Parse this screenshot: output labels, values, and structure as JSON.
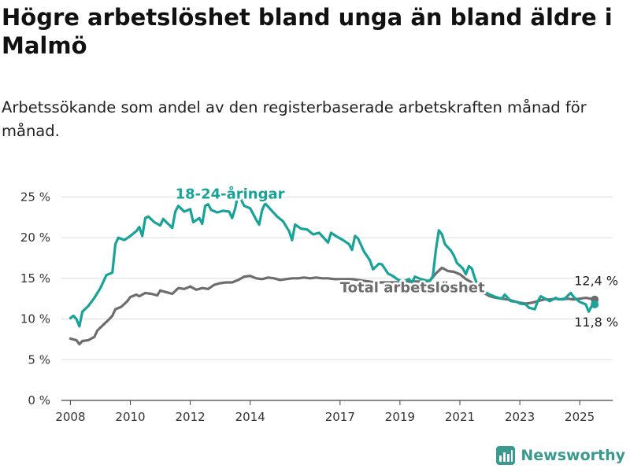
{
  "title": "Högre arbetslöshet bland unga än bland äldre i Malmö",
  "subtitle": "Arbetssökande som andel av den registerbaserade arbetskraften månad för månad.",
  "brand": {
    "name": "Newsworthy",
    "color": "#3a9a8f",
    "icon": "bar-chart-logo-icon"
  },
  "chart_data": {
    "type": "line",
    "ylim": [
      0,
      26
    ],
    "xlim": [
      2007.7,
      2026.1
    ],
    "y_ticks": [
      0,
      5,
      10,
      15,
      20,
      25
    ],
    "y_tick_labels": [
      "0 %",
      "5 %",
      "10 %",
      "15 %",
      "20 %",
      "25 %"
    ],
    "x_ticks": [
      2008,
      2010,
      2012,
      2014,
      2017,
      2019,
      2021,
      2023,
      2025
    ],
    "x_tick_labels": [
      "2008",
      "2010",
      "2012",
      "2014",
      "2017",
      "2019",
      "2021",
      "2023",
      "2025"
    ],
    "grid": true,
    "series": [
      {
        "name": "18-24-åringar",
        "color": "#18a398",
        "end_label": "11,8 %",
        "points": [
          [
            2008.0,
            10.1
          ],
          [
            2008.1,
            10.4
          ],
          [
            2008.2,
            10.0
          ],
          [
            2008.3,
            9.1
          ],
          [
            2008.4,
            10.9
          ],
          [
            2008.6,
            11.6
          ],
          [
            2008.8,
            12.6
          ],
          [
            2009.0,
            13.8
          ],
          [
            2009.2,
            15.4
          ],
          [
            2009.4,
            15.7
          ],
          [
            2009.5,
            19.2
          ],
          [
            2009.6,
            20.0
          ],
          [
            2009.8,
            19.7
          ],
          [
            2010.0,
            20.2
          ],
          [
            2010.2,
            20.8
          ],
          [
            2010.3,
            21.3
          ],
          [
            2010.4,
            20.2
          ],
          [
            2010.5,
            22.4
          ],
          [
            2010.6,
            22.6
          ],
          [
            2010.8,
            21.9
          ],
          [
            2011.0,
            21.5
          ],
          [
            2011.1,
            22.3
          ],
          [
            2011.2,
            21.9
          ],
          [
            2011.4,
            21.2
          ],
          [
            2011.5,
            23.2
          ],
          [
            2011.6,
            23.9
          ],
          [
            2011.8,
            23.2
          ],
          [
            2012.0,
            23.5
          ],
          [
            2012.1,
            21.9
          ],
          [
            2012.3,
            22.4
          ],
          [
            2012.4,
            21.7
          ],
          [
            2012.5,
            23.9
          ],
          [
            2012.6,
            24.1
          ],
          [
            2012.7,
            23.4
          ],
          [
            2012.9,
            23.1
          ],
          [
            2013.1,
            23.3
          ],
          [
            2013.3,
            23.2
          ],
          [
            2013.4,
            22.4
          ],
          [
            2013.5,
            23.6
          ],
          [
            2013.6,
            25.4
          ],
          [
            2013.8,
            23.9
          ],
          [
            2014.0,
            23.6
          ],
          [
            2014.2,
            22.2
          ],
          [
            2014.3,
            21.6
          ],
          [
            2014.4,
            23.4
          ],
          [
            2014.5,
            24.2
          ],
          [
            2014.7,
            23.4
          ],
          [
            2014.9,
            22.6
          ],
          [
            2015.1,
            22.0
          ],
          [
            2015.3,
            20.8
          ],
          [
            2015.4,
            19.7
          ],
          [
            2015.5,
            21.6
          ],
          [
            2015.7,
            21.1
          ],
          [
            2015.9,
            21.0
          ],
          [
            2016.1,
            20.4
          ],
          [
            2016.3,
            20.6
          ],
          [
            2016.5,
            19.8
          ],
          [
            2016.6,
            19.4
          ],
          [
            2016.7,
            20.6
          ],
          [
            2016.9,
            20.1
          ],
          [
            2017.1,
            19.7
          ],
          [
            2017.3,
            19.2
          ],
          [
            2017.4,
            18.5
          ],
          [
            2017.5,
            20.2
          ],
          [
            2017.6,
            19.9
          ],
          [
            2017.8,
            18.3
          ],
          [
            2018.0,
            17.2
          ],
          [
            2018.1,
            16.1
          ],
          [
            2018.3,
            16.8
          ],
          [
            2018.4,
            16.7
          ],
          [
            2018.6,
            15.6
          ],
          [
            2018.8,
            15.2
          ],
          [
            2018.9,
            14.9
          ],
          [
            2019.1,
            14.6
          ],
          [
            2019.3,
            14.9
          ],
          [
            2019.4,
            14.5
          ],
          [
            2019.5,
            15.2
          ],
          [
            2019.7,
            14.9
          ],
          [
            2019.9,
            14.7
          ],
          [
            2020.0,
            14.7
          ],
          [
            2020.1,
            15.3
          ],
          [
            2020.2,
            18.5
          ],
          [
            2020.3,
            20.9
          ],
          [
            2020.4,
            20.4
          ],
          [
            2020.5,
            19.2
          ],
          [
            2020.7,
            18.4
          ],
          [
            2020.8,
            17.8
          ],
          [
            2020.9,
            16.9
          ],
          [
            2021.1,
            16.2
          ],
          [
            2021.2,
            15.5
          ],
          [
            2021.3,
            16.5
          ],
          [
            2021.4,
            16.2
          ],
          [
            2021.5,
            15.0
          ],
          [
            2021.6,
            14.1
          ],
          [
            2021.8,
            13.4
          ],
          [
            2022.0,
            13.0
          ],
          [
            2022.2,
            12.7
          ],
          [
            2022.4,
            12.5
          ],
          [
            2022.5,
            13.0
          ],
          [
            2022.7,
            12.2
          ],
          [
            2022.9,
            12.1
          ],
          [
            2023.0,
            11.9
          ],
          [
            2023.2,
            11.8
          ],
          [
            2023.3,
            11.4
          ],
          [
            2023.5,
            11.2
          ],
          [
            2023.6,
            12.2
          ],
          [
            2023.7,
            12.8
          ],
          [
            2023.9,
            12.4
          ],
          [
            2024.0,
            12.2
          ],
          [
            2024.2,
            12.6
          ],
          [
            2024.3,
            12.4
          ],
          [
            2024.5,
            12.5
          ],
          [
            2024.7,
            13.2
          ],
          [
            2024.8,
            12.7
          ],
          [
            2025.0,
            12.1
          ],
          [
            2025.2,
            11.8
          ],
          [
            2025.3,
            10.9
          ],
          [
            2025.4,
            11.6
          ],
          [
            2025.5,
            11.8
          ]
        ]
      },
      {
        "name": "Total arbetslöshet",
        "color": "#6d6d6d",
        "end_label": "12,4 %",
        "points": [
          [
            2008.0,
            7.6
          ],
          [
            2008.2,
            7.4
          ],
          [
            2008.3,
            6.9
          ],
          [
            2008.4,
            7.3
          ],
          [
            2008.6,
            7.4
          ],
          [
            2008.8,
            7.8
          ],
          [
            2008.9,
            8.6
          ],
          [
            2009.1,
            9.3
          ],
          [
            2009.3,
            10.0
          ],
          [
            2009.4,
            10.4
          ],
          [
            2009.5,
            11.2
          ],
          [
            2009.7,
            11.5
          ],
          [
            2009.9,
            12.2
          ],
          [
            2010.0,
            12.7
          ],
          [
            2010.2,
            13.0
          ],
          [
            2010.3,
            12.8
          ],
          [
            2010.5,
            13.2
          ],
          [
            2010.7,
            13.1
          ],
          [
            2010.9,
            12.9
          ],
          [
            2011.0,
            13.5
          ],
          [
            2011.2,
            13.3
          ],
          [
            2011.4,
            13.1
          ],
          [
            2011.6,
            13.8
          ],
          [
            2011.8,
            13.7
          ],
          [
            2012.0,
            14.0
          ],
          [
            2012.2,
            13.6
          ],
          [
            2012.4,
            13.8
          ],
          [
            2012.6,
            13.7
          ],
          [
            2012.8,
            14.2
          ],
          [
            2013.0,
            14.4
          ],
          [
            2013.2,
            14.5
          ],
          [
            2013.4,
            14.5
          ],
          [
            2013.6,
            14.8
          ],
          [
            2013.8,
            15.2
          ],
          [
            2014.0,
            15.3
          ],
          [
            2014.2,
            15.0
          ],
          [
            2014.4,
            14.9
          ],
          [
            2014.6,
            15.1
          ],
          [
            2014.8,
            15.0
          ],
          [
            2015.0,
            14.8
          ],
          [
            2015.2,
            14.9
          ],
          [
            2015.4,
            15.0
          ],
          [
            2015.6,
            15.0
          ],
          [
            2015.8,
            15.1
          ],
          [
            2016.0,
            15.0
          ],
          [
            2016.2,
            15.1
          ],
          [
            2016.4,
            15.0
          ],
          [
            2016.6,
            15.0
          ],
          [
            2016.8,
            14.9
          ],
          [
            2017.0,
            14.9
          ],
          [
            2017.4,
            14.9
          ],
          [
            2017.8,
            14.7
          ],
          [
            2018.2,
            14.5
          ],
          [
            2018.6,
            14.5
          ],
          [
            2019.0,
            14.5
          ],
          [
            2019.4,
            14.6
          ],
          [
            2019.8,
            14.6
          ],
          [
            2020.0,
            14.7
          ],
          [
            2020.2,
            15.6
          ],
          [
            2020.4,
            16.3
          ],
          [
            2020.6,
            15.9
          ],
          [
            2020.8,
            15.8
          ],
          [
            2021.0,
            15.5
          ],
          [
            2021.2,
            14.9
          ],
          [
            2021.4,
            14.5
          ],
          [
            2021.6,
            13.8
          ],
          [
            2021.8,
            13.2
          ],
          [
            2022.0,
            12.8
          ],
          [
            2022.2,
            12.6
          ],
          [
            2022.4,
            12.5
          ],
          [
            2022.6,
            12.4
          ],
          [
            2022.8,
            12.2
          ],
          [
            2023.0,
            12.0
          ],
          [
            2023.2,
            11.9
          ],
          [
            2023.4,
            12.0
          ],
          [
            2023.6,
            12.2
          ],
          [
            2023.8,
            12.4
          ],
          [
            2024.0,
            12.4
          ],
          [
            2024.2,
            12.5
          ],
          [
            2024.4,
            12.4
          ],
          [
            2024.6,
            12.5
          ],
          [
            2024.8,
            12.4
          ],
          [
            2025.0,
            12.5
          ],
          [
            2025.2,
            12.6
          ],
          [
            2025.5,
            12.4
          ]
        ]
      }
    ]
  }
}
